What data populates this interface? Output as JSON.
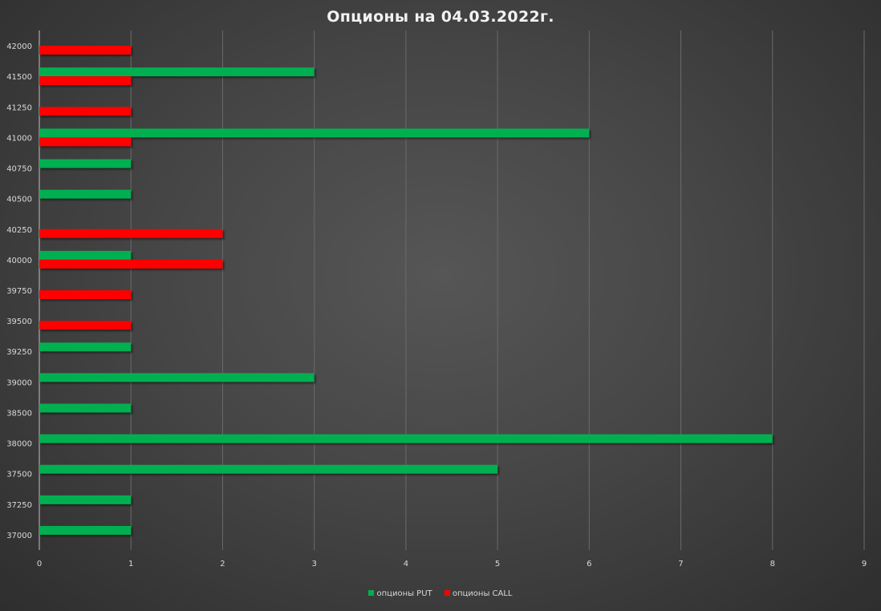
{
  "chart_data": {
    "type": "bar",
    "orientation": "horizontal",
    "title": "Опционы на 04.03.2022г.",
    "categories": [
      "37000",
      "37250",
      "37500",
      "38000",
      "38500",
      "39000",
      "39250",
      "39500",
      "39750",
      "40000",
      "40250",
      "40500",
      "40750",
      "41000",
      "41250",
      "41500",
      "42000"
    ],
    "series": [
      {
        "name": "опционы PUT",
        "color": "#00b050",
        "values": [
          1,
          1,
          5,
          8,
          1,
          3,
          1,
          null,
          null,
          1,
          null,
          1,
          1,
          6,
          null,
          3,
          null
        ]
      },
      {
        "name": "опционы CALL",
        "color": "#ff0000",
        "values": [
          null,
          null,
          null,
          null,
          null,
          null,
          null,
          1,
          1,
          2,
          2,
          null,
          null,
          1,
          1,
          1,
          1
        ]
      }
    ],
    "x_ticks": [
      "0",
      "1",
      "2",
      "3",
      "4",
      "5",
      "6",
      "7",
      "8",
      "9"
    ],
    "xlim": [
      0,
      9
    ],
    "grid": true,
    "legend_position": "bottom"
  }
}
